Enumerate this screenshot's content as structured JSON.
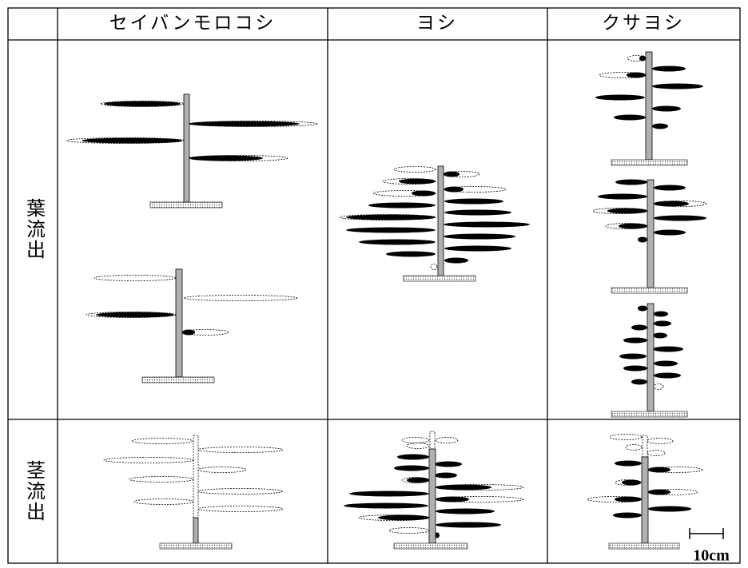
{
  "header": {
    "columns": [
      "セイバンモロコシ",
      "ヨシ",
      "クサヨシ"
    ]
  },
  "rows": [
    {
      "label": "葉流出"
    },
    {
      "label": "茎流出"
    }
  ],
  "scale": {
    "label": "10cm"
  }
}
